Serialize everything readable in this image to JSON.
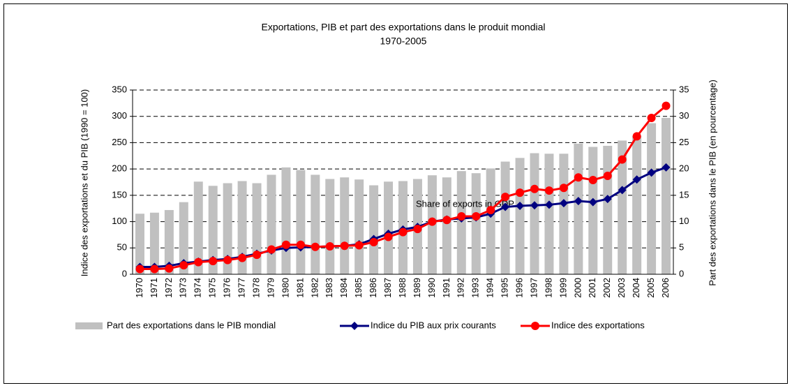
{
  "chart_data": {
    "type": "combo",
    "title": "Exportations, PIB et part des exportations dans le produit mondial",
    "subtitle": "1970-2005",
    "y_label": "Indice des exportations et du PIB (1990 = 100)",
    "y2_label": "Part des exportations dans le PIB (en pourcentage)",
    "annotation": "Share of exports in GDP",
    "categories": [
      "1970",
      "1971",
      "1972",
      "1973",
      "1974",
      "1975",
      "1976",
      "1977",
      "1978",
      "1979",
      "1980",
      "1981",
      "1982",
      "1983",
      "1984",
      "1985",
      "1986",
      "1987",
      "1988",
      "1989",
      "1990",
      "1991",
      "1992",
      "1993",
      "1994",
      "1995",
      "1996",
      "1997",
      "1998",
      "1999",
      "2000",
      "2001",
      "2002",
      "2003",
      "2004",
      "2005",
      "2006"
    ],
    "series": [
      {
        "name": "Part des exportations dans le PIB mondial",
        "type": "bar",
        "axis": "y2",
        "color": "#c0c0c0",
        "values": [
          11.5,
          11.7,
          12.2,
          13.7,
          17.6,
          16.8,
          17.3,
          17.7,
          17.3,
          18.9,
          20.3,
          19.8,
          18.9,
          18.1,
          18.4,
          18.0,
          16.9,
          17.6,
          17.7,
          18.1,
          18.8,
          18.4,
          19.6,
          19.2,
          20.1,
          21.4,
          22.1,
          23.0,
          22.9,
          22.9,
          24.8,
          24.2,
          24.4,
          25.4,
          26.3,
          28.7,
          29.7
        ]
      },
      {
        "name": "Indice du PIB aux prix courants",
        "type": "line",
        "marker": "diamond",
        "color": "#000080",
        "values": [
          14,
          14,
          16,
          21,
          24,
          27,
          29,
          33,
          39,
          45,
          50,
          51,
          52,
          53,
          54,
          57,
          67,
          77,
          85,
          90,
          100,
          104,
          106,
          108,
          115,
          128,
          130,
          131,
          132,
          135,
          139,
          137,
          143,
          160,
          180,
          193,
          203
        ]
      },
      {
        "name": "Indice des exportations",
        "type": "line",
        "marker": "circle",
        "color": "#ff0000",
        "values": [
          10,
          10,
          11,
          17,
          23,
          25,
          27,
          31,
          37,
          47,
          56,
          56,
          52,
          53,
          54,
          55,
          61,
          71,
          80,
          86,
          100,
          103,
          110,
          110,
          122,
          147,
          155,
          162,
          159,
          164,
          184,
          179,
          187,
          218,
          262,
          297,
          320
        ]
      }
    ],
    "ylim": [
      0,
      350
    ],
    "yticks": [
      0,
      50,
      100,
      150,
      200,
      250,
      300,
      350
    ],
    "y2lim": [
      0,
      35
    ],
    "y2ticks": [
      0,
      5,
      10,
      15,
      20,
      25,
      30,
      35
    ],
    "grid": true,
    "legend": "bottom"
  }
}
